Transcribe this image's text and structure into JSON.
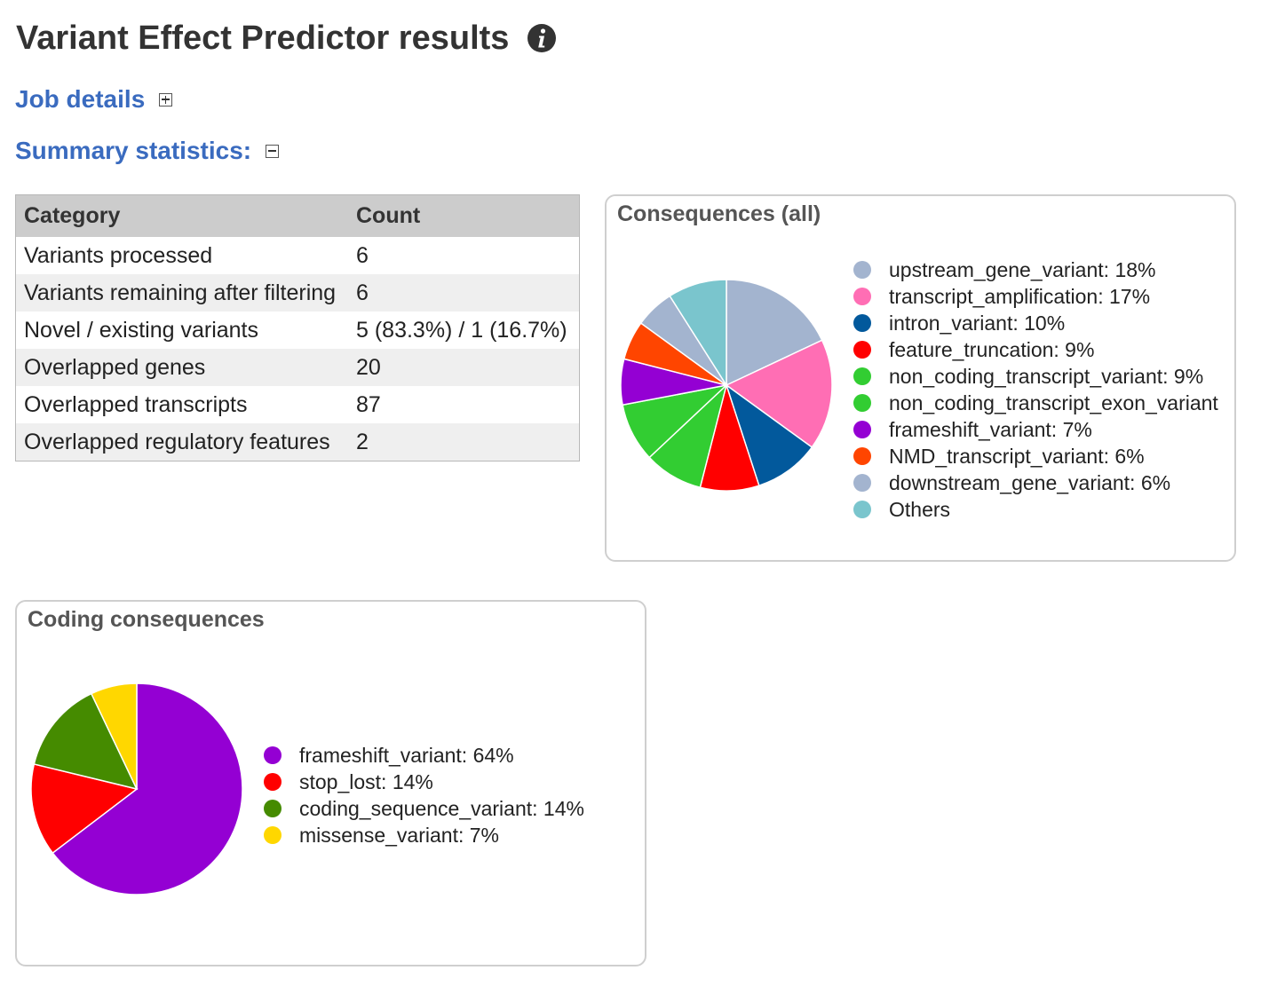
{
  "page": {
    "title": "Variant Effect Predictor results"
  },
  "job_details": {
    "label": "Job details"
  },
  "summary": {
    "label": "Summary statistics:",
    "table": {
      "headers": [
        "Category",
        "Count"
      ],
      "rows": [
        [
          "Variants processed",
          "6"
        ],
        [
          "Variants remaining after filtering",
          "6"
        ],
        [
          "Novel / existing variants",
          "5 (83.3%) / 1 (16.7%)"
        ],
        [
          "Overlapped genes",
          "20"
        ],
        [
          "Overlapped transcripts",
          "87"
        ],
        [
          "Overlapped regulatory features",
          "2"
        ]
      ]
    }
  },
  "chart_data": [
    {
      "type": "pie",
      "title": "Consequences (all)",
      "slices": [
        {
          "label": "upstream_gene_variant: 18%",
          "value": 18,
          "color": "#a3b4cf"
        },
        {
          "label": "transcript_amplification: 17%",
          "value": 17,
          "color": "#ff6eb4"
        },
        {
          "label": "intron_variant: 10%",
          "value": 10,
          "color": "#02599c"
        },
        {
          "label": "feature_truncation: 9%",
          "value": 9,
          "color": "#ff0000"
        },
        {
          "label": "non_coding_transcript_variant: 9%",
          "value": 9,
          "color": "#32cd32"
        },
        {
          "label": "non_coding_transcript_exon_variant",
          "value": 9,
          "color": "#32cd32"
        },
        {
          "label": "frameshift_variant: 7%",
          "value": 7,
          "color": "#9400d3"
        },
        {
          "label": "NMD_transcript_variant: 6%",
          "value": 6,
          "color": "#ff4500"
        },
        {
          "label": "downstream_gene_variant: 6%",
          "value": 6,
          "color": "#a3b4cf"
        },
        {
          "label": "Others",
          "value": 9,
          "color": "#7ac5cd"
        }
      ]
    },
    {
      "type": "pie",
      "title": "Coding consequences",
      "slices": [
        {
          "label": "frameshift_variant: 64%",
          "value": 64,
          "color": "#9400d3"
        },
        {
          "label": "stop_lost: 14%",
          "value": 14,
          "color": "#ff0000"
        },
        {
          "label": "coding_sequence_variant: 14%",
          "value": 14,
          "color": "#458b00"
        },
        {
          "label": "missense_variant: 7%",
          "value": 7,
          "color": "#ffd700"
        }
      ]
    }
  ]
}
